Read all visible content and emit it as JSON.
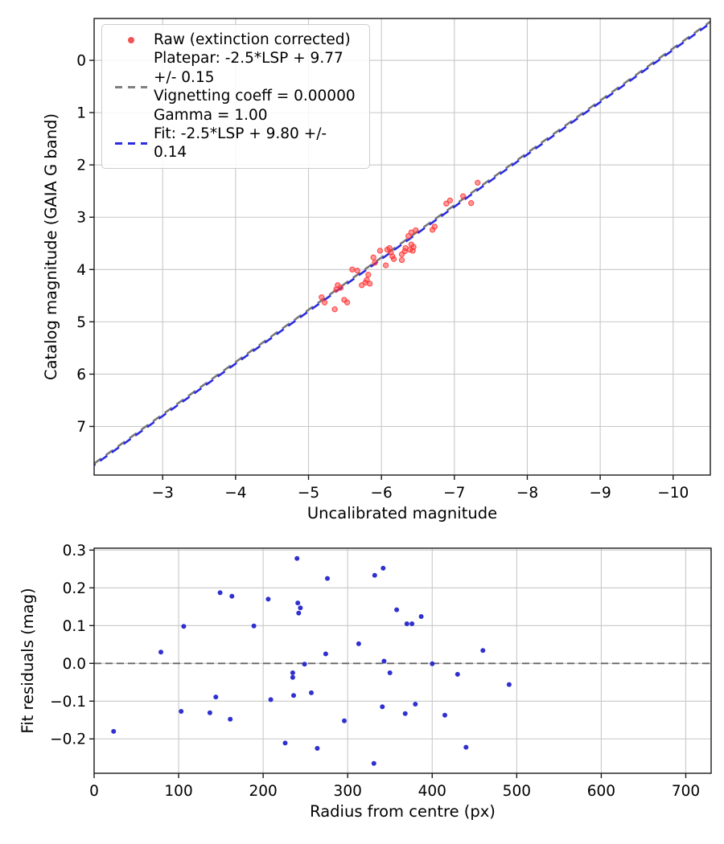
{
  "figure": {
    "background": "#ffffff",
    "grid_color": "#c8c8c8",
    "spine_color": "#1a1a1a",
    "text_color": "#000000"
  },
  "legend": {
    "raw_label": "Raw (extinction corrected)",
    "platepar_label": "Platepar: -2.5*LSP + 9.77 +/- 0.15\nVignetting coeff = 0.00000\nGamma = 1.00",
    "fit_label": "Fit: -2.5*LSP + 9.80 +/- 0.14",
    "raw_marker_color": "#f25252",
    "platepar_line_color": "#808080",
    "fit_line_color": "#2b2be0"
  },
  "chart_data": [
    {
      "type": "scatter",
      "name": "magnitude-calibration-plot",
      "xlabel": "Uncalibrated magnitude",
      "ylabel": "Catalog magnitude (GAIA G band)",
      "x_axis_inverted": true,
      "y_axis_inverted": true,
      "grid": true,
      "xlim": [
        -2.06,
        -10.51
      ],
      "ylim_top": -0.8,
      "ylim_bottom": 7.93,
      "xticks": [
        {
          "v": -3,
          "label": "−3"
        },
        {
          "v": -4,
          "label": "−4"
        },
        {
          "v": -5,
          "label": "−5"
        },
        {
          "v": -6,
          "label": "−6"
        },
        {
          "v": -7,
          "label": "−7"
        },
        {
          "v": -8,
          "label": "−8"
        },
        {
          "v": -9,
          "label": "−9"
        },
        {
          "v": -10,
          "label": "−10"
        }
      ],
      "yticks": [
        {
          "v": 0,
          "label": "0"
        },
        {
          "v": 1,
          "label": "1"
        },
        {
          "v": 2,
          "label": "2"
        },
        {
          "v": 3,
          "label": "3"
        },
        {
          "v": 4,
          "label": "4"
        },
        {
          "v": 5,
          "label": "5"
        },
        {
          "v": 6,
          "label": "6"
        },
        {
          "v": 7,
          "label": "7"
        }
      ],
      "lines": [
        {
          "name": "platepar-line",
          "label": "Platepar: -2.5*LSP + 9.77 +/- 0.15",
          "slope": 1,
          "intercept": 9.77,
          "color": "#787878",
          "width": 2.6,
          "dash": "11 7",
          "dashoffset": 0
        },
        {
          "name": "fit-line",
          "label": "Fit: -2.5*LSP + 9.80 +/- 0.14",
          "slope": 1,
          "intercept": 9.8,
          "color": "#2b2be0",
          "width": 2.6,
          "dash": "11 7",
          "dashoffset": 9
        }
      ],
      "series": [
        {
          "name": "raw-extinction-corrected",
          "label": "Raw (extinction corrected)",
          "color": "#ff3333",
          "marker": "circle",
          "points": [
            [
              -7.32,
              2.34
            ],
            [
              -7.23,
              2.73
            ],
            [
              -7.12,
              2.6
            ],
            [
              -6.94,
              2.68
            ],
            [
              -6.89,
              2.74
            ],
            [
              -6.73,
              3.18
            ],
            [
              -6.7,
              3.24
            ],
            [
              -6.47,
              3.25
            ],
            [
              -6.41,
              3.29
            ],
            [
              -6.37,
              3.36
            ],
            [
              -6.44,
              3.57
            ],
            [
              -6.41,
              3.52
            ],
            [
              -6.39,
              3.62
            ],
            [
              -6.33,
              3.59
            ],
            [
              -6.43,
              3.64
            ],
            [
              -6.32,
              3.65
            ],
            [
              -6.28,
              3.71
            ],
            [
              -6.28,
              3.82
            ],
            [
              -6.15,
              3.75
            ],
            [
              -6.17,
              3.8
            ],
            [
              -6.13,
              3.67
            ],
            [
              -6.11,
              3.59
            ],
            [
              -6.08,
              3.62
            ],
            [
              -5.98,
              3.64
            ],
            [
              -6.06,
              3.92
            ],
            [
              -5.89,
              3.77
            ],
            [
              -5.91,
              3.87
            ],
            [
              -5.6,
              4.0
            ],
            [
              -5.67,
              4.02
            ],
            [
              -5.82,
              4.1
            ],
            [
              -5.8,
              4.2
            ],
            [
              -5.78,
              4.25
            ],
            [
              -5.84,
              4.27
            ],
            [
              -5.73,
              4.3
            ],
            [
              -5.4,
              4.3
            ],
            [
              -5.44,
              4.35
            ],
            [
              -5.38,
              4.38
            ],
            [
              -5.18,
              4.53
            ],
            [
              -5.22,
              4.63
            ],
            [
              -5.49,
              4.58
            ],
            [
              -5.53,
              4.63
            ],
            [
              -5.36,
              4.76
            ]
          ]
        }
      ]
    },
    {
      "type": "scatter",
      "name": "fit-residuals-plot",
      "xlabel": "Radius from centre (px)",
      "ylabel": "Fit residuals (mag)",
      "grid": true,
      "xlim": [
        0,
        730
      ],
      "ylim_top": 0.305,
      "ylim_bottom": -0.291,
      "xticks": [
        {
          "v": 0,
          "label": "0"
        },
        {
          "v": 100,
          "label": "100"
        },
        {
          "v": 200,
          "label": "200"
        },
        {
          "v": 300,
          "label": "300"
        },
        {
          "v": 400,
          "label": "400"
        },
        {
          "v": 500,
          "label": "500"
        },
        {
          "v": 600,
          "label": "600"
        },
        {
          "v": 700,
          "label": "700"
        }
      ],
      "yticks": [
        {
          "v": -0.2,
          "label": "−0.2"
        },
        {
          "v": -0.1,
          "label": "−0.1"
        },
        {
          "v": 0.0,
          "label": "0.0"
        },
        {
          "v": 0.1,
          "label": "0.1"
        },
        {
          "v": 0.2,
          "label": "0.2"
        },
        {
          "v": 0.3,
          "label": "0.3"
        }
      ],
      "hlines": [
        {
          "name": "zero-residual-line",
          "y": 0,
          "color": "#666666",
          "width": 1.9,
          "dash": "9 5"
        }
      ],
      "series": [
        {
          "name": "residuals",
          "label": "Fit residuals",
          "color": "#2525cc",
          "marker": "circle",
          "points": [
            [
              23,
              -0.18
            ],
            [
              79,
              0.03
            ],
            [
              106,
              0.098
            ],
            [
              103,
              -0.127
            ],
            [
              137,
              -0.131
            ],
            [
              144,
              -0.089
            ],
            [
              149,
              0.187
            ],
            [
              163,
              0.178
            ],
            [
              161,
              -0.148
            ],
            [
              189,
              0.099
            ],
            [
              206,
              0.17
            ],
            [
              209,
              -0.096
            ],
            [
              226,
              -0.211
            ],
            [
              235,
              -0.025
            ],
            [
              235,
              -0.037
            ],
            [
              236,
              -0.085
            ],
            [
              240,
              0.278
            ],
            [
              241,
              0.16
            ],
            [
              242,
              0.133
            ],
            [
              244,
              0.147
            ],
            [
              249,
              -0.002
            ],
            [
              257,
              -0.078
            ],
            [
              264,
              -0.225
            ],
            [
              276,
              0.225
            ],
            [
              274,
              0.025
            ],
            [
              296,
              -0.152
            ],
            [
              313,
              0.052
            ],
            [
              332,
              0.233
            ],
            [
              331,
              -0.265
            ],
            [
              342,
              0.252
            ],
            [
              343,
              0.006
            ],
            [
              341,
              -0.115
            ],
            [
              350,
              -0.025
            ],
            [
              358,
              0.142
            ],
            [
              368,
              -0.133
            ],
            [
              370,
              0.105
            ],
            [
              376,
              0.105
            ],
            [
              380,
              -0.108
            ],
            [
              387,
              0.124
            ],
            [
              400,
              -0.001
            ],
            [
              415,
              -0.137
            ],
            [
              430,
              -0.029
            ],
            [
              440,
              -0.222
            ],
            [
              460,
              0.034
            ],
            [
              491,
              -0.056
            ]
          ]
        }
      ]
    }
  ]
}
